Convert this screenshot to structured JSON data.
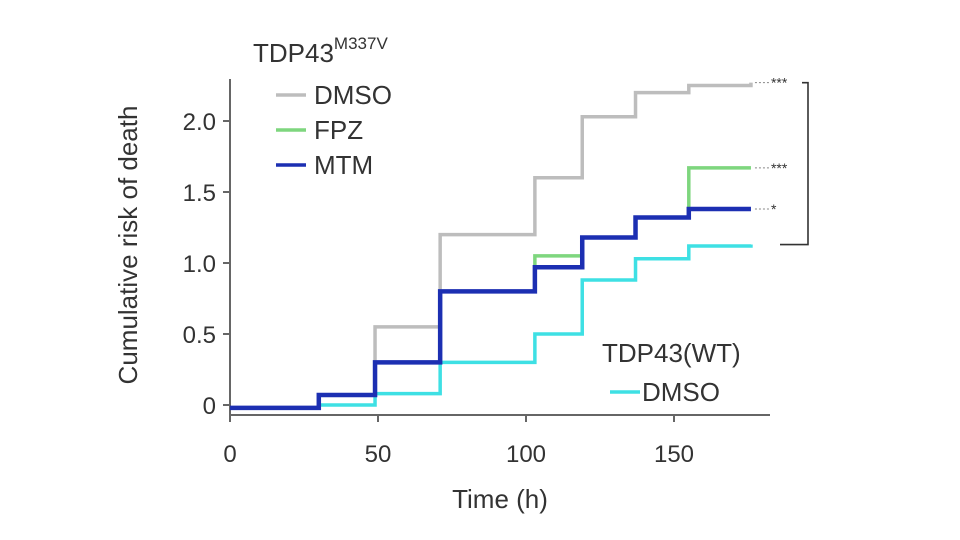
{
  "chart_data": {
    "type": "line",
    "step": true,
    "xlabel": "Time (h)",
    "ylabel": "Cumulative risk of death",
    "xlim": [
      0,
      185
    ],
    "ylim": [
      -0.05,
      2.35
    ],
    "xticks": [
      0,
      50,
      100,
      150
    ],
    "yticks": [
      0,
      0.5,
      1.0,
      1.5,
      2.0
    ],
    "xtick_labels": [
      "0",
      "50",
      "100",
      "150"
    ],
    "ytick_labels": [
      "0",
      "0.5",
      "1.0",
      "1.5",
      "2.0"
    ],
    "legend_title": "TDP43",
    "legend_title_sup": "M337V",
    "second_legend_title": "TDP43(WT)",
    "series": [
      {
        "name": "DMSO",
        "group": "mutant",
        "color": "#bdbdbd",
        "x": [
          0,
          30,
          49,
          71,
          103,
          119,
          137,
          155,
          176
        ],
        "y": [
          -0.02,
          0.07,
          0.55,
          1.2,
          1.6,
          2.03,
          2.2,
          2.25,
          2.27
        ]
      },
      {
        "name": "FPZ",
        "group": "mutant",
        "color": "#7ed67e",
        "x": [
          0,
          30,
          49,
          71,
          103,
          119,
          137,
          155,
          176
        ],
        "y": [
          -0.02,
          0.07,
          0.3,
          0.8,
          1.05,
          1.18,
          1.32,
          1.67,
          1.67
        ]
      },
      {
        "name": "MTM",
        "group": "mutant",
        "color": "#1c2fb2",
        "x": [
          0,
          30,
          49,
          71,
          103,
          119,
          137,
          155,
          176
        ],
        "y": [
          -0.02,
          0.07,
          0.3,
          0.8,
          0.97,
          1.18,
          1.32,
          1.38,
          1.38
        ]
      },
      {
        "name": "DMSO",
        "group": "wt",
        "color": "#3ee0e4",
        "x": [
          0,
          30,
          49,
          71,
          103,
          119,
          137,
          155,
          176
        ],
        "y": [
          -0.02,
          0.0,
          0.08,
          0.3,
          0.5,
          0.88,
          1.03,
          1.12,
          1.13
        ]
      }
    ],
    "significance": [
      "***",
      "***",
      "*"
    ]
  }
}
